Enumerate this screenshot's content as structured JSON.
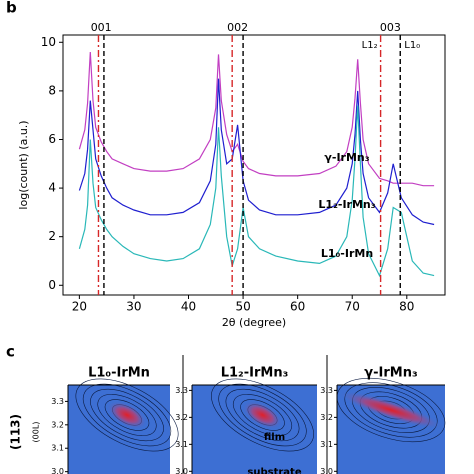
{
  "panel_labels": [
    "b",
    "c"
  ],
  "chart_data": [
    {
      "type": "line",
      "xlabel": "2θ (degree)",
      "ylabel": "log(count) (a.u.)",
      "xlim": [
        17,
        87
      ],
      "ylim": [
        -0.4,
        10.3
      ],
      "xticks": [
        20,
        30,
        40,
        50,
        60,
        70,
        80
      ],
      "yticks": [
        0,
        2,
        4,
        6,
        8,
        10
      ],
      "peak_labels": [
        "001",
        "002",
        "003"
      ],
      "reference_lines": [
        {
          "name": "L1₂",
          "color": "#d62728",
          "style": "dashdot",
          "x": [
            23.5,
            48,
            75.2
          ]
        },
        {
          "name": "L1₀",
          "color": "#000000",
          "style": "dashed",
          "x": [
            24.5,
            50,
            78.8
          ]
        }
      ],
      "x": [
        20,
        21,
        21.5,
        22,
        22.5,
        23,
        24,
        25,
        26,
        28,
        30,
        33,
        36,
        39,
        42,
        44,
        45,
        45.5,
        46,
        47,
        48,
        49,
        50,
        51,
        53,
        56,
        60,
        64,
        67,
        69,
        70,
        70.5,
        71,
        71.5,
        72,
        73,
        75,
        76.5,
        77.5,
        79,
        81,
        83,
        85
      ],
      "series": [
        {
          "name": "γ-IrMn₃",
          "color": "#c23fc2",
          "values": [
            5.6,
            6.4,
            7.5,
            9.6,
            7.6,
            6.5,
            5.9,
            5.5,
            5.2,
            5.0,
            4.8,
            4.7,
            4.7,
            4.8,
            5.2,
            6.0,
            7.3,
            9.5,
            7.6,
            6.2,
            5.5,
            5.8,
            5.1,
            4.8,
            4.6,
            4.5,
            4.5,
            4.6,
            4.9,
            5.5,
            6.5,
            7.7,
            9.3,
            7.5,
            6.0,
            5.0,
            4.4,
            4.3,
            4.2,
            4.2,
            4.2,
            4.1,
            4.1
          ]
        },
        {
          "name": "L1₂-IrMn₃",
          "color": "#1f1fcf",
          "values": [
            3.9,
            4.6,
            5.6,
            7.6,
            6.4,
            5.2,
            4.5,
            4.0,
            3.6,
            3.3,
            3.1,
            2.9,
            2.9,
            3.0,
            3.4,
            4.3,
            5.8,
            8.5,
            6.4,
            5.0,
            5.2,
            6.6,
            4.3,
            3.5,
            3.1,
            2.9,
            2.9,
            3.0,
            3.3,
            4.0,
            5.0,
            6.2,
            8.0,
            6.0,
            4.6,
            3.6,
            3.0,
            3.8,
            5.0,
            3.6,
            2.9,
            2.6,
            2.5
          ]
        },
        {
          "name": "L1₀-IrMn",
          "color": "#2ab8b8",
          "values": [
            1.5,
            2.3,
            3.3,
            6.0,
            4.2,
            3.2,
            2.7,
            2.3,
            2.0,
            1.6,
            1.3,
            1.1,
            1.0,
            1.1,
            1.5,
            2.5,
            4.0,
            6.5,
            4.5,
            2.0,
            0.8,
            1.5,
            3.2,
            2.0,
            1.5,
            1.2,
            1.0,
            0.9,
            1.2,
            2.0,
            3.5,
            5.2,
            7.4,
            5.0,
            2.8,
            1.3,
            0.4,
            1.5,
            3.2,
            3.0,
            1.0,
            0.5,
            0.4
          ]
        }
      ]
    },
    {
      "type": "heatmap",
      "title": "L1₀-IrMn",
      "ylabel": "(113)",
      "ylabel2": "(00L)",
      "ylim": [
        2.99,
        3.37
      ],
      "yticks": [
        3.3,
        3.2,
        3.1,
        {
          "value": 3,
          "label": "3.0"
        }
      ]
    },
    {
      "type": "heatmap",
      "title": "L1₂-IrMn₃",
      "annotations": [
        "film",
        "substrate"
      ],
      "ylim": [
        2.99,
        3.32
      ],
      "yticks": [
        3.3,
        3.2,
        3.1,
        {
          "value": 3,
          "label": "3.0"
        }
      ]
    },
    {
      "type": "heatmap",
      "title": "γ-IrMn₃",
      "ylim": [
        2.99,
        3.32
      ],
      "yticks": [
        3.3,
        3.2,
        3.1,
        {
          "value": 3,
          "label": "3.0"
        }
      ]
    }
  ]
}
